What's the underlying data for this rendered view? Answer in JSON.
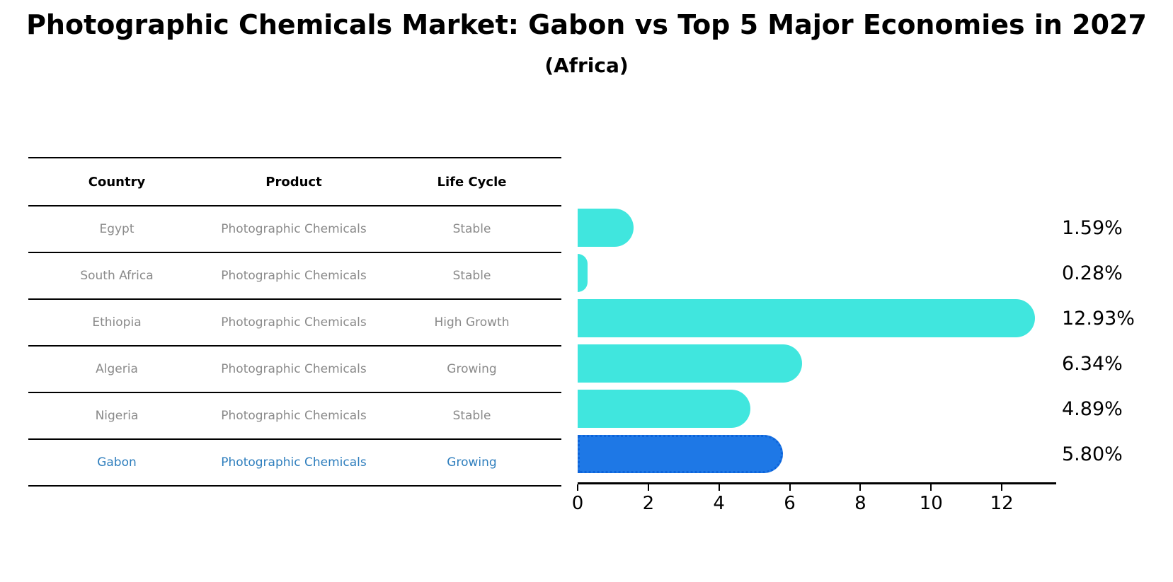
{
  "title": "Photographic Chemicals Market: Gabon vs Top 5 Major Economies in 2027",
  "subtitle": "(Africa)",
  "table": {
    "columns": [
      "Country",
      "Product",
      "Life Cycle"
    ],
    "rows": [
      {
        "country": "Egypt",
        "product": "Photographic Chemicals",
        "life_cycle": "Stable",
        "highlight": false
      },
      {
        "country": "South Africa",
        "product": "Photographic Chemicals",
        "life_cycle": "Stable",
        "highlight": false
      },
      {
        "country": "Ethiopia",
        "product": "Photographic Chemicals",
        "life_cycle": "High Growth",
        "highlight": false
      },
      {
        "country": "Algeria",
        "product": "Photographic Chemicals",
        "life_cycle": "Growing",
        "highlight": false
      },
      {
        "country": "Nigeria",
        "product": "Photographic Chemicals",
        "life_cycle": "Stable",
        "highlight": false
      },
      {
        "country": "Gabon",
        "product": "Photographic Chemicals",
        "life_cycle": "Growing",
        "highlight": true
      }
    ]
  },
  "chart_data": {
    "type": "bar",
    "orientation": "horizontal",
    "title": "Photographic Chemicals Market: Gabon vs Top 5 Major Economies in 2027 (Africa)",
    "categories": [
      "Egypt",
      "South Africa",
      "Ethiopia",
      "Algeria",
      "Nigeria",
      "Gabon"
    ],
    "values": [
      1.59,
      0.28,
      12.93,
      6.34,
      4.89,
      5.8
    ],
    "value_labels": [
      "1.59%",
      "0.28%",
      "12.93%",
      "6.34%",
      "4.89%",
      "5.80%"
    ],
    "xlim": [
      0,
      13.5
    ],
    "x_ticks": [
      0,
      2,
      4,
      6,
      8,
      10,
      12
    ],
    "x_tick_labels": [
      "0",
      "2",
      "4",
      "6",
      "8",
      "10",
      "12"
    ],
    "grid": false,
    "legend": "none",
    "bar_color": "#40e6de",
    "highlight_color": "#1e78e6",
    "highlight_index": 5,
    "highlight_text_color": "#2e7ebd"
  }
}
